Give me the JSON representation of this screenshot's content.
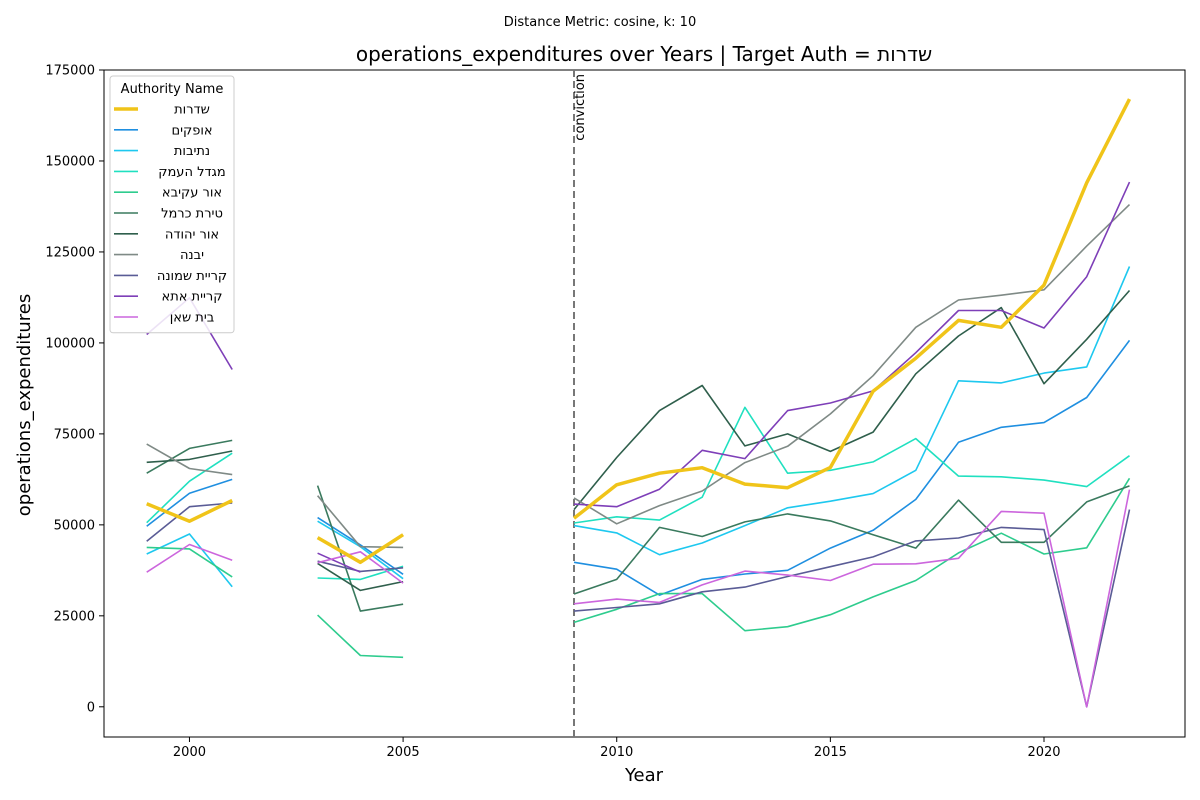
{
  "chart_data": {
    "type": "line",
    "suptitle": "Distance Metric: cosine, k: 10",
    "title": "operations_expenditures over Years | Target Auth = שדרות",
    "xlabel": "Year",
    "ylabel": "operations_expenditures",
    "xlim": [
      1998,
      2023.3
    ],
    "ylim": [
      -8300,
      175000
    ],
    "xticks": [
      2000,
      2005,
      2010,
      2015,
      2020
    ],
    "yticks": [
      0,
      25000,
      50000,
      75000,
      100000,
      125000,
      150000,
      175000
    ],
    "grid": false,
    "legend": {
      "title": "Authority Name",
      "placement": "upper-left"
    },
    "annotation": {
      "x": 2009,
      "label": "conviction",
      "style": "dashed-vertical",
      "color": "#777777"
    },
    "x": [
      1999,
      2000,
      2001,
      2002,
      2003,
      2004,
      2005,
      2006,
      2007,
      2008,
      2009,
      2010,
      2011,
      2012,
      2013,
      2014,
      2015,
      2016,
      2017,
      2018,
      2019,
      2020,
      2021,
      2022
    ],
    "series": [
      {
        "name": "שדרות",
        "color": "#f0c419",
        "target": true,
        "values": [
          55800,
          51000,
          56700,
          null,
          46500,
          39700,
          47300,
          null,
          null,
          null,
          51800,
          61000,
          64200,
          65700,
          61200,
          60200,
          65800,
          86700,
          95800,
          106200,
          104300,
          115900,
          144000,
          167000
        ]
      },
      {
        "name": "אופקים",
        "color": "#1f8fe0",
        "values": [
          49600,
          58700,
          62500,
          null,
          52000,
          44500,
          36400,
          null,
          null,
          null,
          39700,
          37800,
          30700,
          35000,
          36500,
          37500,
          43600,
          48500,
          57000,
          72700,
          76800,
          78100,
          85000,
          100700
        ]
      },
      {
        "name": "נתיבות",
        "color": "#1ec8ef",
        "values": [
          42000,
          47500,
          33000,
          null,
          51000,
          44000,
          35200,
          null,
          null,
          null,
          49800,
          47800,
          41800,
          45000,
          49800,
          54700,
          56500,
          58600,
          65000,
          89600,
          89000,
          91700,
          93400,
          121000
        ]
      },
      {
        "name": "מגדל העמק",
        "color": "#20e0c0",
        "values": [
          50600,
          62000,
          69700,
          null,
          35400,
          35000,
          38600,
          null,
          null,
          null,
          50500,
          52200,
          51300,
          57600,
          82300,
          64200,
          65000,
          67300,
          73700,
          63400,
          63200,
          62300,
          60500,
          69000
        ]
      },
      {
        "name": "אור עקיבא",
        "color": "#2ecc8e",
        "values": [
          43800,
          43400,
          35700,
          null,
          25200,
          14100,
          13600,
          null,
          null,
          null,
          23200,
          26800,
          31100,
          31100,
          20900,
          22000,
          25300,
          30200,
          34700,
          42300,
          47700,
          42000,
          43700,
          62800
        ]
      },
      {
        "name": "טירת כרמל",
        "color": "#3a7a5e",
        "values": [
          64200,
          71000,
          73200,
          null,
          60800,
          26300,
          28200,
          null,
          null,
          null,
          31000,
          35000,
          49300,
          46800,
          50800,
          53000,
          51100,
          47300,
          43600,
          56800,
          45200,
          45200,
          56300,
          60700
        ]
      },
      {
        "name": "אור יהודה",
        "color": "#2f5f4c",
        "values": [
          67200,
          68000,
          70300,
          null,
          39400,
          32000,
          34400,
          null,
          null,
          null,
          54200,
          68500,
          81400,
          88300,
          71700,
          75000,
          70200,
          75500,
          91500,
          101900,
          109700,
          88800,
          101000,
          114400
        ]
      },
      {
        "name": "יבנה",
        "color": "#7f8a86",
        "values": [
          72200,
          65500,
          63800,
          null,
          58000,
          44000,
          43800,
          null,
          null,
          null,
          57400,
          50300,
          55300,
          59300,
          67100,
          71600,
          80500,
          91000,
          104300,
          111800,
          113100,
          114600,
          126600,
          138000
        ]
      },
      {
        "name": "קריית שמונה",
        "color": "#5a5c96",
        "values": [
          45500,
          55000,
          56000,
          null,
          40000,
          37200,
          38200,
          null,
          null,
          null,
          26300,
          27300,
          28300,
          31600,
          32900,
          35800,
          38500,
          41200,
          45600,
          46400,
          49300,
          48700,
          0,
          54200
        ]
      },
      {
        "name": "קריית אתא",
        "color": "#7e3fb8",
        "values": [
          102300,
          112400,
          92700,
          null,
          42200,
          37000,
          null,
          null,
          null,
          null,
          55700,
          55000,
          59800,
          70500,
          68200,
          81400,
          83500,
          86800,
          97300,
          108900,
          108900,
          104100,
          118200,
          144200
        ]
      },
      {
        "name": "בית שאן",
        "color": "#cc66dd",
        "values": [
          37000,
          44600,
          40300,
          null,
          39600,
          42600,
          34000,
          null,
          null,
          null,
          28300,
          29600,
          28700,
          33500,
          37300,
          36200,
          34700,
          39200,
          39300,
          40800,
          53700,
          53200,
          0,
          59700
        ]
      }
    ]
  }
}
